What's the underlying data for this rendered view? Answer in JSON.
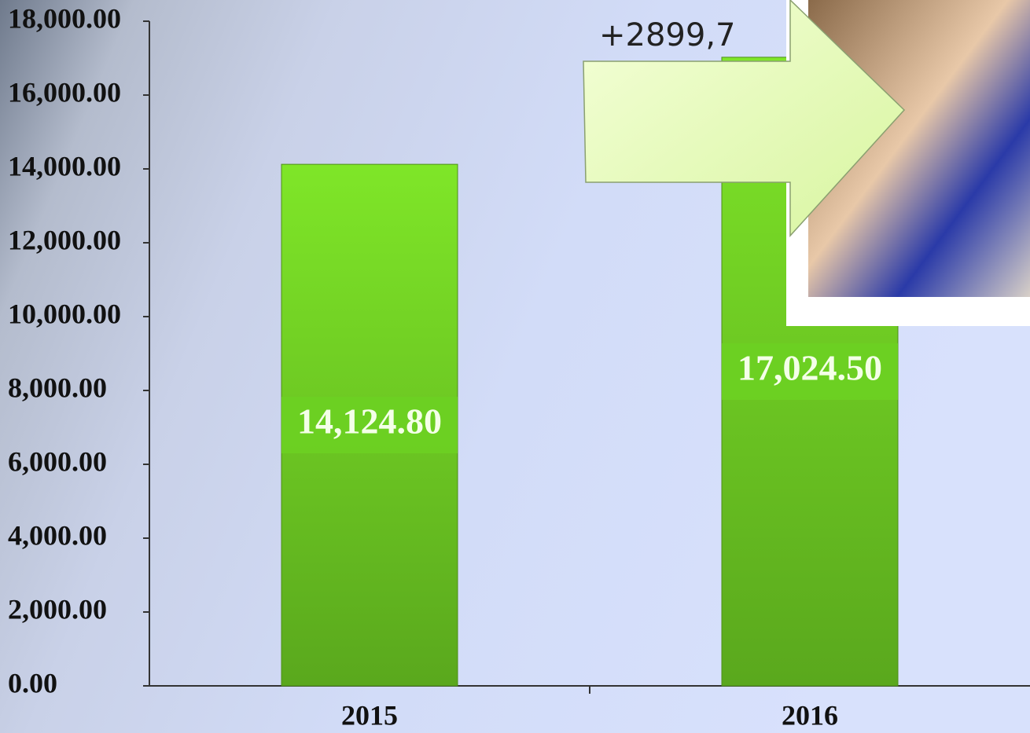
{
  "chart_data": {
    "type": "bar",
    "categories": [
      "2015",
      "2016"
    ],
    "values": [
      14124.8,
      17024.5
    ],
    "value_labels": [
      "14,124.80",
      "17,024.50"
    ],
    "color": "#6cd122",
    "ylim": [
      0,
      18000
    ],
    "yticks": [
      {
        "value": 0,
        "label": "0.00"
      },
      {
        "value": 2000,
        "label": "2,000.00"
      },
      {
        "value": 4000,
        "label": "4,000.00"
      },
      {
        "value": 6000,
        "label": "6,000.00"
      },
      {
        "value": 8000,
        "label": "8,000.00"
      },
      {
        "value": 10000,
        "label": "10,000.00"
      },
      {
        "value": 12000,
        "label": "12,000.00"
      },
      {
        "value": 14000,
        "label": "14,000.00"
      },
      {
        "value": 16000,
        "label": "16,000.00"
      },
      {
        "value": 18000,
        "label": "18,000.00"
      }
    ],
    "annotation": "+2899,7"
  }
}
